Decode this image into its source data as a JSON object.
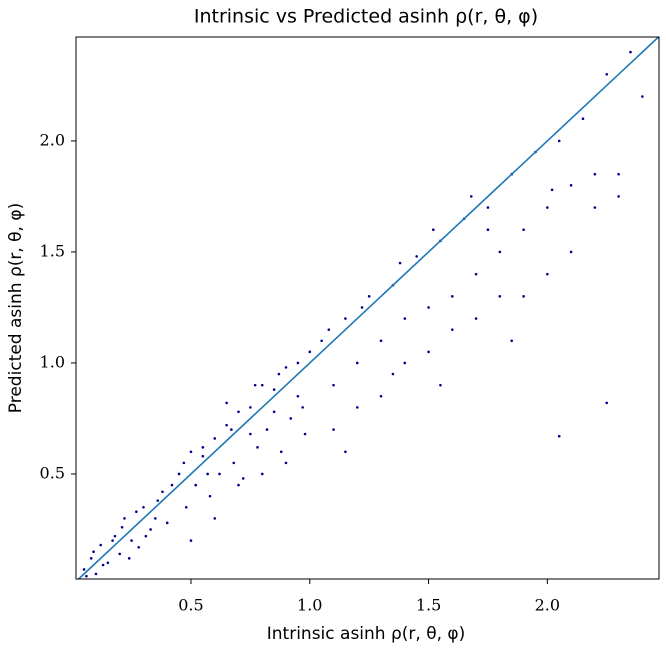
{
  "chart_data": {
    "type": "scatter",
    "title": "Intrinsic vs Predicted asinh ρ(r, θ, φ)",
    "x_label": "Intrinsic asinh ρ(r, θ, φ)",
    "y_label": "Predicted asinh ρ(r, θ, φ)",
    "color": "#00008b",
    "identity_line": true,
    "identity_line_color": "#1f77b4",
    "xlim": [
      0.016,
      2.47
    ],
    "ylim": [
      0.027,
      2.468
    ],
    "xticks": [
      0.5,
      {
        "value": 1.0,
        "label": "1.0"
      },
      1.5,
      {
        "value": 2.0,
        "label": "2.0"
      }
    ],
    "yticks": [
      0.5,
      {
        "value": 1.0,
        "label": "1.0"
      },
      1.5,
      {
        "value": 2.0,
        "label": "2.0"
      }
    ],
    "x": [
      0.05,
      0.08,
      0.1,
      0.12,
      0.15,
      0.18,
      0.2,
      0.22,
      0.25,
      0.28,
      0.3,
      0.33,
      0.35,
      0.38,
      0.4,
      0.06,
      0.09,
      0.13,
      0.17,
      0.21,
      0.24,
      0.27,
      0.31,
      0.36,
      0.42,
      0.45,
      0.48,
      0.5,
      0.52,
      0.55,
      0.58,
      0.6,
      0.62,
      0.65,
      0.68,
      0.7,
      0.72,
      0.75,
      0.78,
      0.8,
      0.82,
      0.85,
      0.88,
      0.9,
      0.92,
      0.95,
      0.98,
      1.0,
      0.5,
      0.6,
      0.7,
      0.8,
      0.9,
      0.55,
      0.65,
      0.75,
      0.85,
      0.95,
      0.47,
      0.57,
      0.67,
      0.77,
      0.87,
      0.97,
      1.05,
      1.1,
      1.15,
      1.2,
      1.25,
      1.3,
      1.35,
      1.4,
      1.45,
      1.5,
      1.55,
      1.6,
      1.65,
      1.7,
      1.75,
      1.8,
      1.1,
      1.2,
      1.3,
      1.4,
      1.5,
      1.6,
      1.7,
      1.8,
      1.08,
      1.22,
      1.38,
      1.52,
      1.68,
      1.15,
      1.35,
      1.55,
      1.75,
      1.85,
      1.9,
      1.95,
      2.0,
      2.05,
      2.1,
      2.15,
      2.2,
      2.25,
      2.3,
      2.35,
      2.4,
      1.9,
      2.0,
      2.1,
      2.2,
      2.3,
      1.85,
      2.05,
      2.25,
      2.02
    ],
    "values": [
      0.07,
      0.12,
      0.05,
      0.18,
      0.1,
      0.22,
      0.14,
      0.3,
      0.2,
      0.17,
      0.35,
      0.25,
      0.3,
      0.42,
      0.28,
      0.04,
      0.15,
      0.09,
      0.2,
      0.26,
      0.12,
      0.33,
      0.22,
      0.38,
      0.45,
      0.5,
      0.35,
      0.6,
      0.45,
      0.58,
      0.4,
      0.66,
      0.5,
      0.72,
      0.55,
      0.78,
      0.48,
      0.8,
      0.62,
      0.9,
      0.7,
      0.88,
      0.6,
      0.98,
      0.75,
      1.0,
      0.68,
      1.05,
      0.2,
      0.3,
      0.45,
      0.5,
      0.55,
      0.62,
      0.82,
      0.68,
      0.78,
      0.85,
      0.55,
      0.5,
      0.7,
      0.9,
      0.95,
      0.8,
      1.1,
      0.9,
      1.2,
      1.0,
      1.3,
      1.1,
      1.35,
      1.2,
      1.48,
      1.25,
      1.55,
      1.3,
      1.65,
      1.4,
      1.7,
      1.5,
      0.7,
      0.8,
      0.85,
      1.0,
      1.05,
      1.15,
      1.2,
      1.3,
      1.15,
      1.25,
      1.45,
      1.6,
      1.75,
      0.6,
      0.95,
      0.9,
      1.6,
      1.85,
      1.6,
      1.95,
      1.7,
      2.0,
      1.8,
      2.1,
      1.85,
      2.3,
      1.75,
      2.4,
      2.2,
      1.3,
      1.4,
      1.5,
      1.7,
      1.85,
      1.1,
      0.67,
      0.82,
      1.78
    ]
  }
}
